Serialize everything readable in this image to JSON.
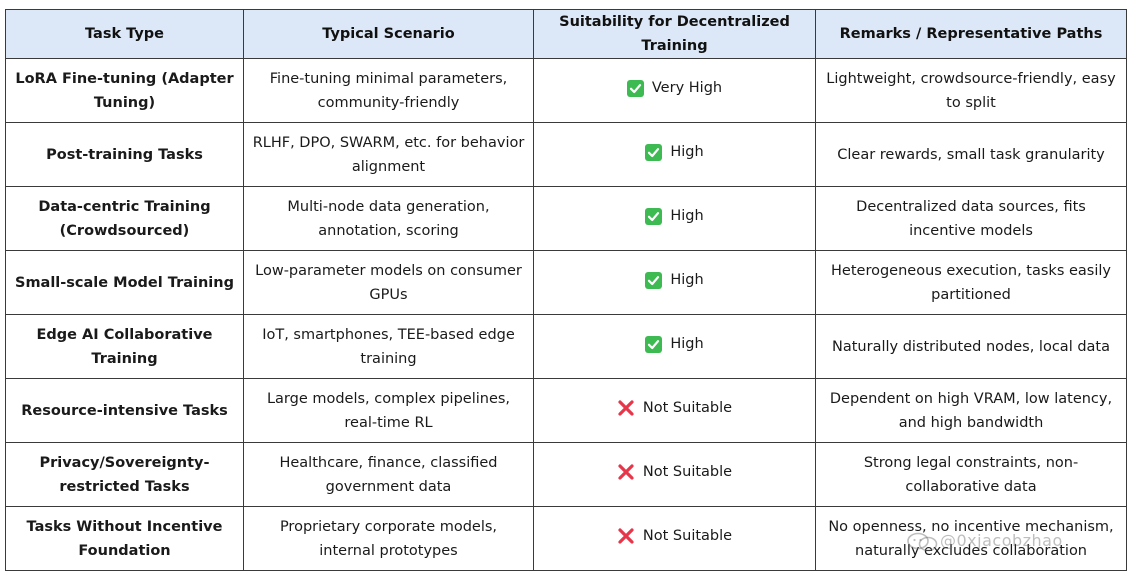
{
  "headers": {
    "task_type": "Task Type",
    "typical_scenario": "Typical Scenario",
    "suitability": "Suitability for Decentralized Training",
    "remarks": "Remarks / Representative Paths"
  },
  "rows": [
    {
      "task": "LoRA Fine-tuning (Adapter Tuning)",
      "scenario": "Fine-tuning minimal parameters, community-friendly",
      "suitability_icon": "check-icon",
      "suitability": "Very High",
      "remarks": "Lightweight, crowdsource-friendly, easy to split"
    },
    {
      "task": "Post-training Tasks",
      "scenario": "RLHF, DPO, SWARM, etc. for behavior alignment",
      "suitability_icon": "check-icon",
      "suitability": "High",
      "remarks": "Clear rewards, small task granularity"
    },
    {
      "task": "Data-centric Training (Crowdsourced)",
      "scenario": "Multi-node data generation, annotation, scoring",
      "suitability_icon": "check-icon",
      "suitability": "High",
      "remarks": "Decentralized data sources, fits incentive models"
    },
    {
      "task": "Small-scale Model Training",
      "scenario": "Low-parameter models on consumer GPUs",
      "suitability_icon": "check-icon",
      "suitability": "High",
      "remarks": "Heterogeneous execution, tasks easily partitioned"
    },
    {
      "task": "Edge AI Collaborative Training",
      "scenario": "IoT, smartphones, TEE-based edge training",
      "suitability_icon": "check-icon",
      "suitability": "High",
      "remarks": "Naturally distributed nodes, local data"
    },
    {
      "task": "Resource-intensive Tasks",
      "scenario": "Large models, complex pipelines, real-time RL",
      "suitability_icon": "cross-icon",
      "suitability": "Not Suitable",
      "remarks": "Dependent on high VRAM, low latency, and high bandwidth"
    },
    {
      "task": "Privacy/Sovereignty-restricted Tasks",
      "scenario": "Healthcare, finance, classified government data",
      "suitability_icon": "cross-icon",
      "suitability": "Not Suitable",
      "remarks": "Strong legal constraints, non-collaborative data"
    },
    {
      "task": "Tasks Without Incentive Foundation",
      "scenario": "Proprietary corporate models, internal prototypes",
      "suitability_icon": "cross-icon",
      "suitability": "Not Suitable",
      "remarks": "No openness, no incentive mechanism, naturally excludes collaboration"
    }
  ],
  "colors": {
    "header_bg": "#dce8f7",
    "border": "#3a3a3a",
    "check_green": "#3dba52",
    "cross_red": "#e5364a"
  },
  "watermark": {
    "icon": "wechat-logo-icon",
    "text": "@0xjacobzhao"
  }
}
